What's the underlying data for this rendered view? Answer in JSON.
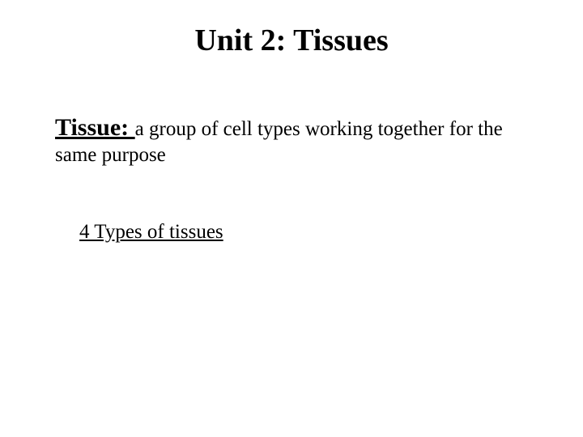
{
  "slide": {
    "background_color": "#ffffff",
    "text_color": "#000000",
    "font_family": "Times New Roman",
    "title": {
      "text": "Unit 2:  Tissues",
      "fontsize_pt": 38,
      "weight": "bold",
      "align": "center"
    },
    "definition": {
      "term": "Tissue: ",
      "term_fontsize_pt": 30,
      "term_weight": "bold",
      "term_underline": true,
      "body_line1": "a group of cell types working together for the",
      "body_line2": "same purpose",
      "body_fontsize_pt": 25
    },
    "subheading": {
      "text": "4 Types of tissues",
      "fontsize_pt": 25,
      "underline": true
    }
  }
}
